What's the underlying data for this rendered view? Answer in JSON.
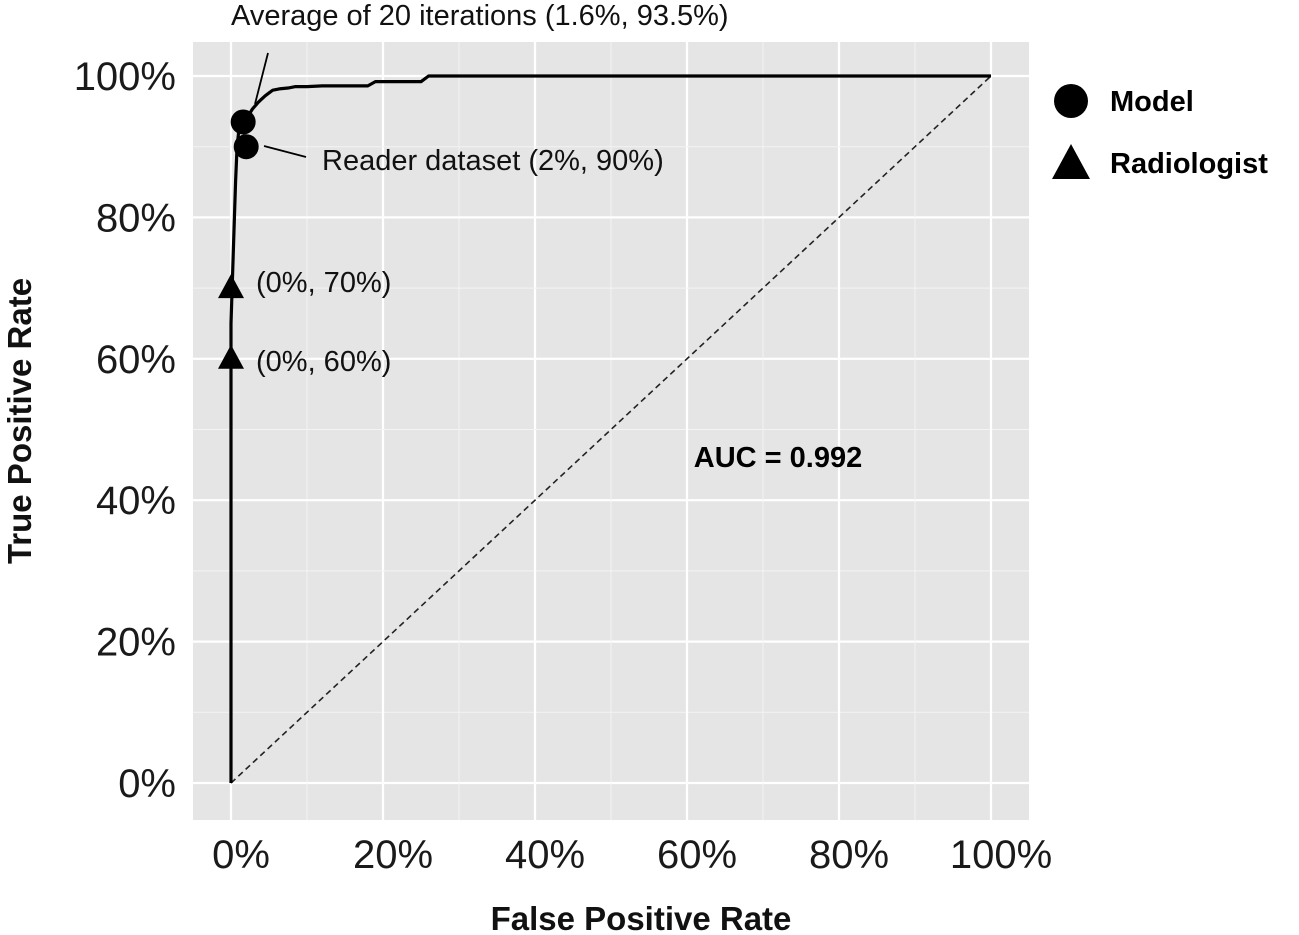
{
  "chart_data": {
    "type": "line",
    "xlabel": "False Positive Rate",
    "ylabel": "True Positive Rate",
    "xlim": [
      0,
      100
    ],
    "ylim": [
      0,
      100
    ],
    "x_ticks": [
      "0%",
      "20%",
      "40%",
      "60%",
      "80%",
      "100%"
    ],
    "y_ticks": [
      "0%",
      "20%",
      "40%",
      "60%",
      "80%",
      "100%"
    ],
    "x_tick_values": [
      0,
      20,
      40,
      60,
      80,
      100
    ],
    "y_tick_values": [
      0,
      20,
      40,
      60,
      80,
      100
    ],
    "grid": true,
    "background": "#e5e5e5",
    "roc_curve": {
      "x": [
        0,
        0,
        0.3,
        0.6,
        0.8,
        1.0,
        1.2,
        1.5,
        1.8,
        2.1,
        2.4,
        2.8,
        3.2,
        3.6,
        4.0,
        4.5,
        5.0,
        5.5,
        6.5,
        7.5,
        8.5,
        10,
        12,
        14,
        16,
        18,
        19,
        22,
        25,
        26,
        30,
        40,
        50,
        60,
        70,
        80,
        90,
        100
      ],
      "y": [
        0,
        65,
        75,
        85,
        90,
        92,
        92.8,
        93.3,
        93.6,
        94.0,
        94.6,
        95.3,
        95.8,
        96.3,
        96.7,
        97.2,
        97.6,
        98.0,
        98.2,
        98.3,
        98.5,
        98.5,
        98.6,
        98.6,
        98.6,
        98.6,
        99.2,
        99.2,
        99.2,
        100,
        100,
        100,
        100,
        100,
        100,
        100,
        100,
        100
      ],
      "color": "#000000"
    },
    "diagonal": {
      "x": [
        0,
        100
      ],
      "y": [
        0,
        100
      ],
      "style": "dashed"
    },
    "points": [
      {
        "series": "Model",
        "shape": "circle",
        "x": 1.6,
        "y": 93.5,
        "label": "Average of 20 iterations (1.6%, 93.5%)"
      },
      {
        "series": "Model",
        "shape": "circle",
        "x": 2,
        "y": 90,
        "label": "Reader dataset (2%, 90%)"
      },
      {
        "series": "Radiologist",
        "shape": "triangle",
        "x": 0,
        "y": 70,
        "label": "(0%, 70%)"
      },
      {
        "series": "Radiologist",
        "shape": "triangle",
        "x": 0,
        "y": 60,
        "label": "(0%, 60%)"
      }
    ],
    "annotation": "AUC = 0.992",
    "legend": {
      "placement": "right",
      "entries": [
        {
          "name": "Model",
          "shape": "circle"
        },
        {
          "name": "Radiologist",
          "shape": "triangle"
        }
      ]
    }
  }
}
